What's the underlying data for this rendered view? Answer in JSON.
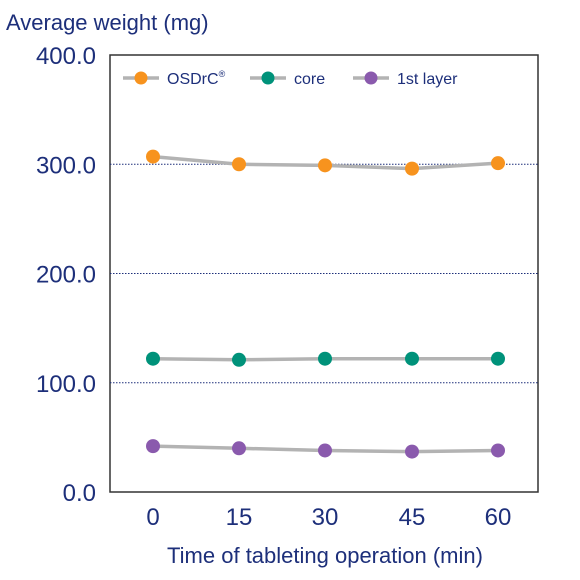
{
  "chart_data": {
    "type": "line",
    "title": "",
    "ylabel": "Average weight (mg)",
    "xlabel": "Time of tableting operation (min)",
    "x": [
      0,
      15,
      30,
      45,
      60
    ],
    "x_tick_labels": [
      "0",
      "15",
      "30",
      "45",
      "60"
    ],
    "ylim": [
      0,
      400
    ],
    "y_tick_labels": [
      "0.0",
      "100.0",
      "200.0",
      "300.0",
      "400.0"
    ],
    "grid": "horizontal dotted",
    "legend_position": "top",
    "series": [
      {
        "name": "OSDrC",
        "name_superscript": "®",
        "color": "#f7931e",
        "values": [
          307,
          300,
          299,
          296,
          301
        ]
      },
      {
        "name": "core",
        "name_superscript": "",
        "color": "#00927a",
        "values": [
          122,
          121,
          122,
          122,
          122
        ]
      },
      {
        "name": "1st layer",
        "name_superscript": "",
        "color": "#8a5aad",
        "values": [
          42,
          40,
          38,
          37,
          38
        ]
      }
    ],
    "line_color": "#b3b3b3"
  }
}
